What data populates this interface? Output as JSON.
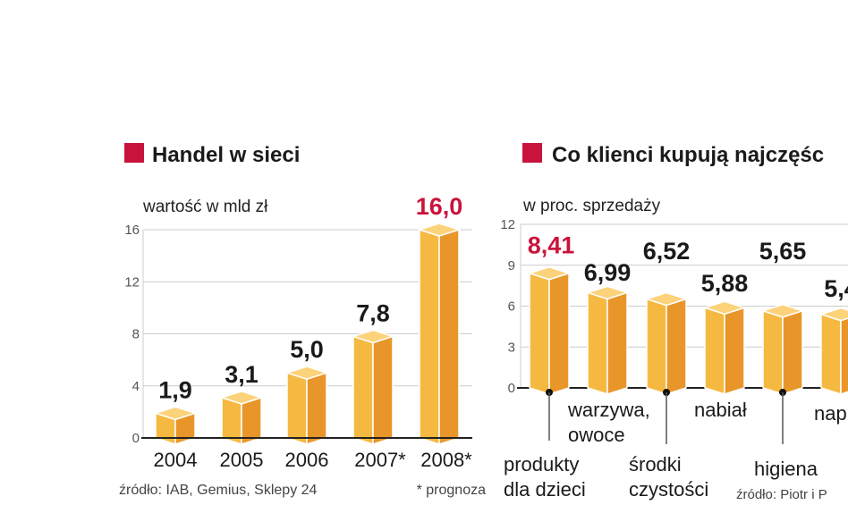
{
  "colors": {
    "accent": "#c8143c",
    "bar_front": "#f5b942",
    "bar_side": "#e8962a",
    "bar_top": "#fcd27a",
    "grid": "#cccccc"
  },
  "chart_data": [
    {
      "type": "bar",
      "title": "Handel w sieci",
      "ylabel": "wartość w mld zł",
      "categories": [
        "2004",
        "2005",
        "2006",
        "2007*",
        "2008*"
      ],
      "values": [
        1.9,
        3.1,
        5.0,
        7.8,
        16.0
      ],
      "value_labels": [
        "1,9",
        "3,1",
        "5,0",
        "7,8",
        "16,0"
      ],
      "highlight_index": 4,
      "ylim": [
        0,
        16
      ],
      "yticks": [
        "0",
        "4",
        "8",
        "12",
        "16"
      ],
      "grid": true,
      "source": "źródło:  IAB, Gemius, Sklepy 24",
      "note": "* prognoza"
    },
    {
      "type": "bar",
      "title": "Co klienci kupują najczęśc",
      "ylabel": "w proc. sprzedaży",
      "categories": [
        [
          "produkty",
          "dla dzieci"
        ],
        [
          "warzywa,",
          "owoce"
        ],
        [
          "środki",
          "czystości"
        ],
        [
          "nabiał"
        ],
        [
          "higiena"
        ],
        [
          "nap"
        ]
      ],
      "values": [
        8.41,
        6.99,
        6.52,
        5.88,
        5.65,
        5.4
      ],
      "value_labels": [
        "8,41",
        "6,99",
        "6,52",
        "5,88",
        "5,65",
        "5,4"
      ],
      "highlight_index": 0,
      "ylim": [
        0,
        12
      ],
      "yticks": [
        "0",
        "3",
        "6",
        "9",
        "12"
      ],
      "grid": true,
      "source": "źródło: Piotr i P"
    }
  ]
}
